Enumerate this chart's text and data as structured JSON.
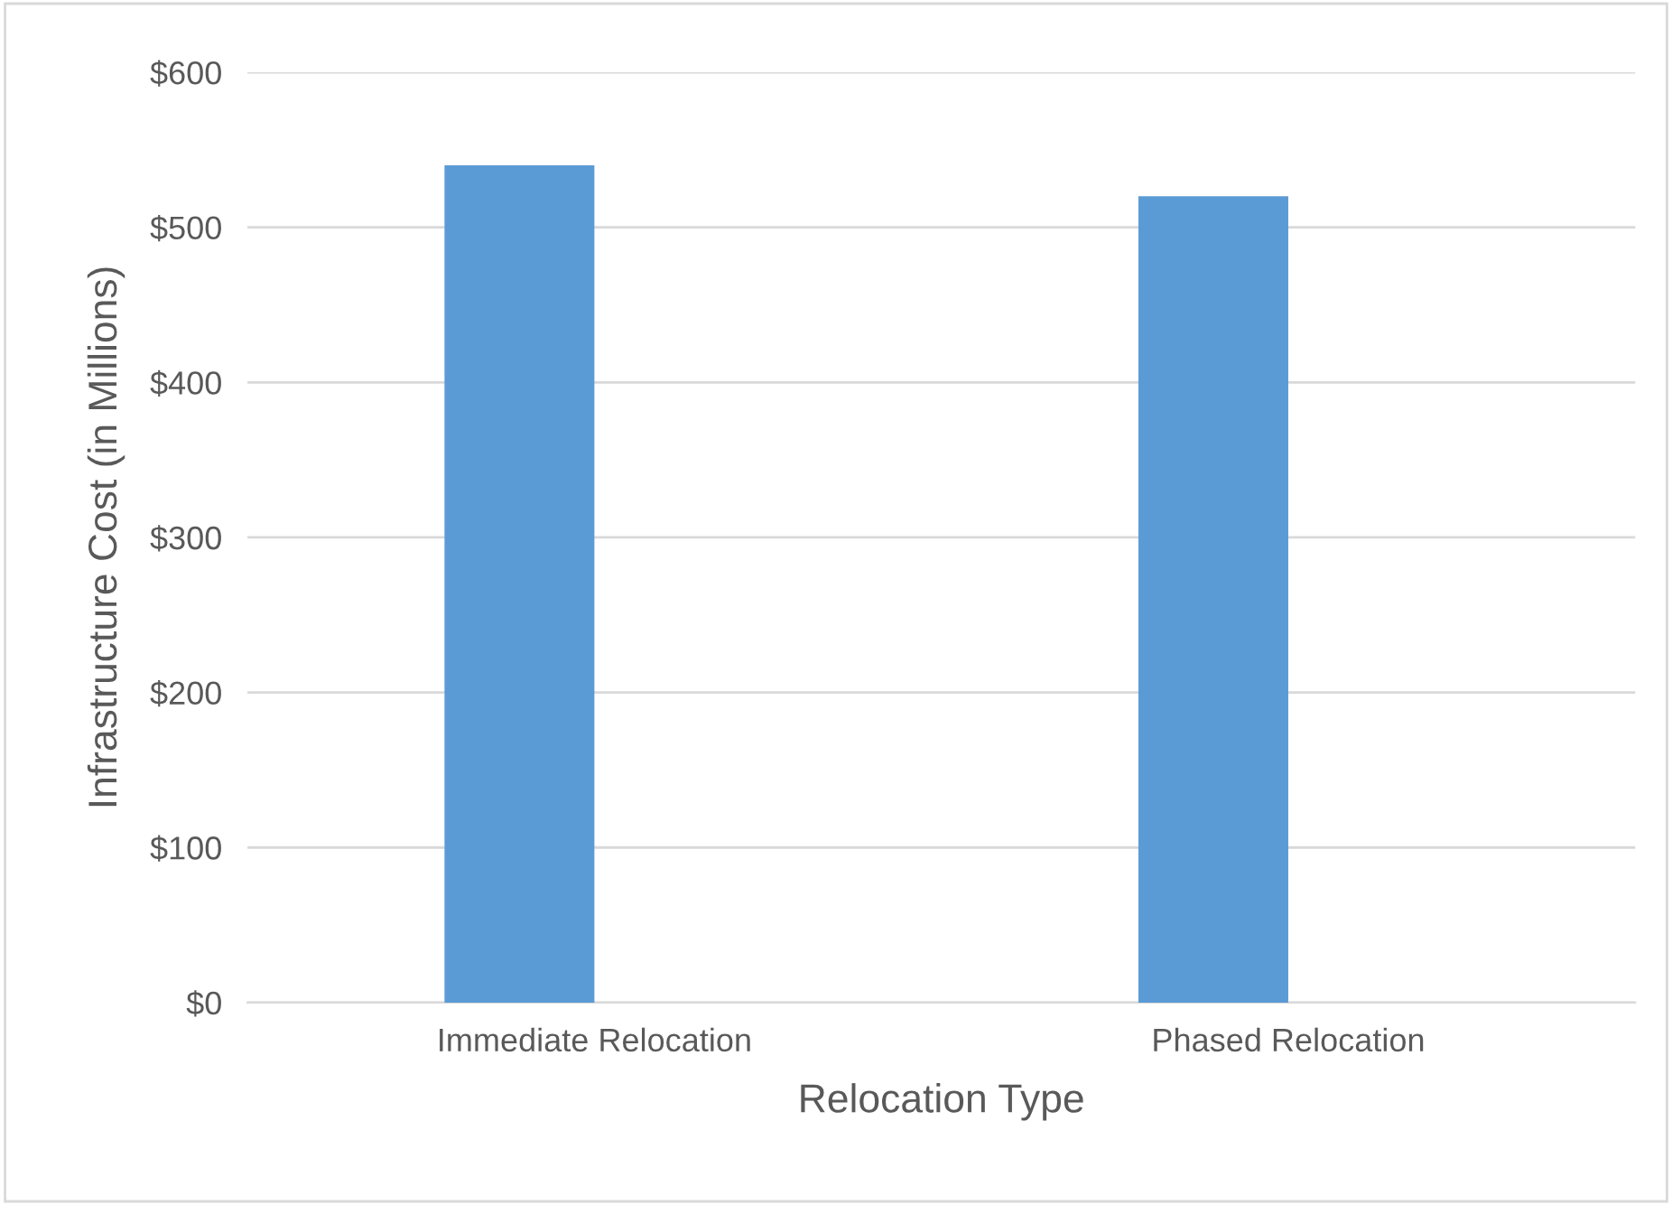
{
  "chart_data": {
    "type": "bar",
    "xlabel": "Relocation Type",
    "ylabel": "Infrastructure Cost (in Millions)",
    "categories": [
      "Immediate Relocation",
      "Phased Relocation"
    ],
    "series": [
      {
        "color": "#5b9bd5",
        "values": [
          540,
          520
        ]
      },
      {
        "values": [
          null,
          null
        ]
      }
    ],
    "ylim": [
      0,
      600
    ],
    "yticks": [
      {
        "value": 0,
        "label": "$0"
      },
      {
        "value": 100,
        "label": "$100"
      },
      {
        "value": 200,
        "label": "$200"
      },
      {
        "value": 300,
        "label": "$300"
      },
      {
        "value": 400,
        "label": "$400"
      },
      {
        "value": 500,
        "label": "$500"
      },
      {
        "value": 600,
        "label": "$600"
      }
    ],
    "grid": "y"
  }
}
